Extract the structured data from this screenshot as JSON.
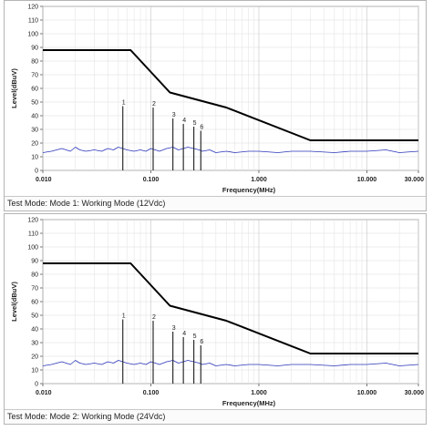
{
  "chart_data": [
    {
      "type": "line",
      "xlabel": "Frequency(MHz)",
      "ylabel": "Level(dBuV)",
      "xscale": "log",
      "xlim": [
        0.01,
        30
      ],
      "ylim": [
        0,
        120
      ],
      "x_ticks": [
        {
          "value": 0.01,
          "label": "0.010"
        },
        {
          "value": 0.1,
          "label": "0.100"
        },
        {
          "value": 1,
          "label": "1.000"
        },
        {
          "value": 10,
          "label": "10.000"
        },
        {
          "value": 30,
          "label": "30.000"
        }
      ],
      "y_ticks": [
        0,
        10,
        20,
        30,
        40,
        50,
        60,
        70,
        80,
        90,
        100,
        110,
        120
      ],
      "grid": true,
      "series": [
        {
          "role": "limit",
          "color": "#000000",
          "x": [
            0.01,
            0.065,
            0.15,
            0.5,
            3,
            30
          ],
          "y": [
            88,
            88,
            57,
            46,
            22,
            22
          ]
        },
        {
          "role": "measured",
          "color": "#2a35b8",
          "x": [
            0.01,
            0.012,
            0.015,
            0.018,
            0.02,
            0.022,
            0.025,
            0.03,
            0.035,
            0.04,
            0.045,
            0.05,
            0.055,
            0.06,
            0.07,
            0.08,
            0.09,
            0.1,
            0.11,
            0.12,
            0.14,
            0.16,
            0.18,
            0.2,
            0.22,
            0.25,
            0.28,
            0.3,
            0.35,
            0.4,
            0.5,
            0.6,
            0.8,
            1.0,
            1.5,
            2,
            3,
            5,
            7,
            10,
            15,
            20,
            30
          ],
          "y": [
            13,
            14,
            16,
            14,
            17,
            15,
            14,
            15,
            14,
            16,
            15,
            17,
            16,
            15,
            14,
            15,
            14,
            16,
            15,
            14,
            16,
            17,
            15,
            16,
            17,
            16,
            15,
            14,
            15,
            13,
            14,
            13,
            14,
            14,
            13,
            14,
            14,
            13,
            14,
            14,
            15,
            13,
            14
          ]
        },
        {
          "role": "peaks",
          "color": "#1a1a1a",
          "labels": [
            "1",
            "2",
            "3",
            "4",
            "5",
            "6"
          ],
          "x": [
            0.055,
            0.105,
            0.16,
            0.2,
            0.25,
            0.29
          ],
          "y": [
            47,
            46,
            38,
            34,
            32,
            29
          ]
        }
      ]
    },
    {
      "type": "line",
      "xlabel": "Frequency(MHz)",
      "ylabel": "Level(dBuV)",
      "xscale": "log",
      "xlim": [
        0.01,
        30
      ],
      "ylim": [
        0,
        120
      ],
      "x_ticks": [
        {
          "value": 0.01,
          "label": "0.010"
        },
        {
          "value": 0.1,
          "label": "0.100"
        },
        {
          "value": 1,
          "label": "1.000"
        },
        {
          "value": 10,
          "label": "10.000"
        },
        {
          "value": 30,
          "label": "30.000"
        }
      ],
      "y_ticks": [
        0,
        10,
        20,
        30,
        40,
        50,
        60,
        70,
        80,
        90,
        100,
        110,
        120
      ],
      "grid": true,
      "series": [
        {
          "role": "limit",
          "color": "#000000",
          "x": [
            0.01,
            0.065,
            0.15,
            0.5,
            3,
            30
          ],
          "y": [
            88,
            88,
            57,
            46,
            22,
            22
          ]
        },
        {
          "role": "measured",
          "color": "#2a35b8",
          "x": [
            0.01,
            0.012,
            0.015,
            0.018,
            0.02,
            0.022,
            0.025,
            0.03,
            0.035,
            0.04,
            0.045,
            0.05,
            0.055,
            0.06,
            0.07,
            0.08,
            0.09,
            0.1,
            0.11,
            0.12,
            0.14,
            0.16,
            0.18,
            0.2,
            0.22,
            0.25,
            0.28,
            0.3,
            0.35,
            0.4,
            0.5,
            0.6,
            0.8,
            1.0,
            1.5,
            2,
            3,
            5,
            7,
            10,
            15,
            20,
            30
          ],
          "y": [
            13,
            14,
            16,
            14,
            17,
            15,
            14,
            15,
            14,
            16,
            15,
            17,
            16,
            15,
            14,
            15,
            14,
            16,
            15,
            14,
            16,
            17,
            15,
            16,
            17,
            16,
            15,
            14,
            15,
            13,
            14,
            13,
            14,
            14,
            13,
            14,
            14,
            13,
            14,
            14,
            15,
            13,
            14
          ]
        },
        {
          "role": "peaks",
          "color": "#1a1a1a",
          "labels": [
            "1",
            "2",
            "3",
            "4",
            "5",
            "6"
          ],
          "x": [
            0.055,
            0.105,
            0.16,
            0.2,
            0.25,
            0.29
          ],
          "y": [
            47,
            46,
            38,
            34,
            32,
            28
          ]
        }
      ]
    }
  ],
  "captions": [
    "Test Mode: Mode 1: Working Mode (12Vdc)",
    "Test Mode: Mode 2: Working Mode (24Vdc)"
  ]
}
